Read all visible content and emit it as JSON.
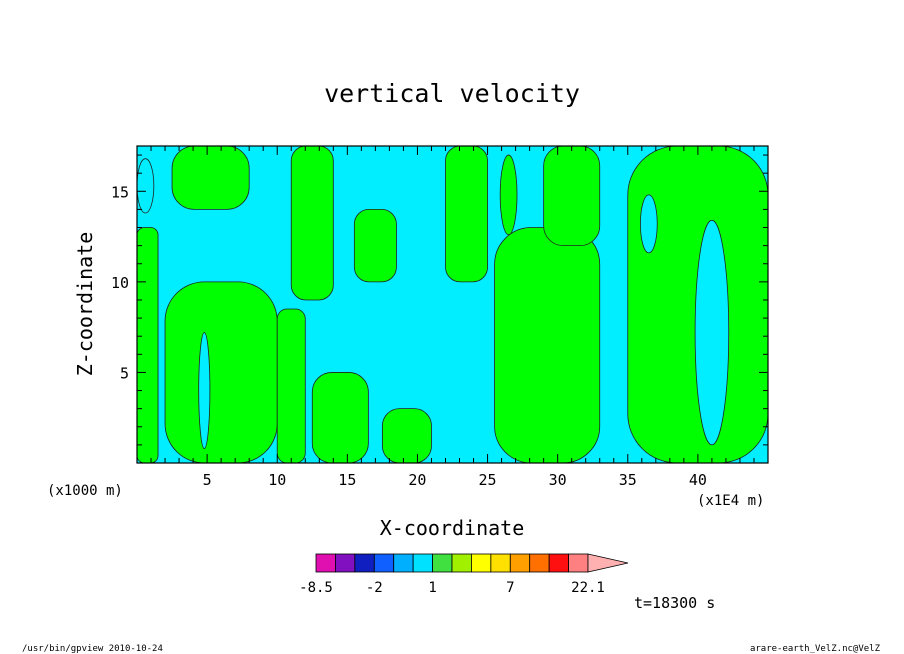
{
  "chart_data": {
    "type": "heatmap",
    "title": "vertical velocity",
    "xlabel": "X-coordinate",
    "ylabel": "Z-coordinate",
    "x_unit_left": "(x1000 m)",
    "x_unit_right": "(x1E4 m)",
    "xlim": [
      0,
      45
    ],
    "ylim": [
      0,
      17.5
    ],
    "x_ticks": [
      5,
      10,
      15,
      20,
      25,
      30,
      35,
      40
    ],
    "x_tick_labels": [
      "5",
      "10",
      "15",
      "20",
      "25",
      "30",
      "35",
      "40"
    ],
    "y_ticks": [
      5,
      10,
      15
    ],
    "y_tick_labels": [
      "5",
      "10",
      "15"
    ],
    "grid": false,
    "colorbar": {
      "colors": [
        "#e010b0",
        "#8010c0",
        "#1020c0",
        "#1060ff",
        "#00b0ff",
        "#00e0ff",
        "#40e040",
        "#a0f000",
        "#ffff00",
        "#ffe000",
        "#ffa000",
        "#ff7000",
        "#ff1010",
        "#ff8080"
      ],
      "extend_color": "#ffb0b0",
      "tick_labels": [
        {
          "label": "-8.5",
          "at_boundary": 0
        },
        {
          "label": "-2",
          "at_boundary": 3
        },
        {
          "label": "1",
          "at_boundary": 6
        },
        {
          "label": "7",
          "at_boundary": 10
        },
        {
          "label": "22.1",
          "at_boundary": 14
        }
      ]
    },
    "field_colors": {
      "positive": "#00ff00",
      "negative": "#00eeff"
    },
    "regions": [
      {
        "level": "positive",
        "x0": 0,
        "x1": 1.5,
        "z0": 0,
        "z1": 13
      },
      {
        "level": "positive",
        "x0": 2,
        "x1": 10,
        "z0": 0,
        "z1": 10
      },
      {
        "level": "positive",
        "x0": 10,
        "x1": 12,
        "z0": 0,
        "z1": 8.5
      },
      {
        "level": "positive",
        "x0": 2.5,
        "x1": 8,
        "z0": 14,
        "z1": 17.5
      },
      {
        "level": "positive",
        "x0": 11,
        "x1": 14,
        "z0": 9,
        "z1": 17.5
      },
      {
        "level": "positive",
        "x0": 12.5,
        "x1": 16.5,
        "z0": 0,
        "z1": 5
      },
      {
        "level": "positive",
        "x0": 15.5,
        "x1": 18.5,
        "z0": 10,
        "z1": 14
      },
      {
        "level": "positive",
        "x0": 17.5,
        "x1": 21,
        "z0": 0,
        "z1": 3
      },
      {
        "level": "positive",
        "x0": 22,
        "x1": 25,
        "z0": 10,
        "z1": 17.5
      },
      {
        "level": "positive",
        "x0": 25.5,
        "x1": 33,
        "z0": 0,
        "z1": 13
      },
      {
        "level": "positive",
        "x0": 29,
        "x1": 33,
        "z0": 12,
        "z1": 17.5
      },
      {
        "level": "positive",
        "x0": 35,
        "x1": 45,
        "z0": 0,
        "z1": 17.5
      }
    ],
    "islands": [
      {
        "level": "negative",
        "cx": 4.8,
        "cz": 4.0,
        "rx": 0.4,
        "rz": 3.2
      },
      {
        "level": "negative",
        "cx": 36.5,
        "cz": 13.2,
        "rx": 0.6,
        "rz": 1.6
      },
      {
        "level": "negative",
        "cx": 41.0,
        "cz": 7.2,
        "rx": 1.2,
        "rz": 6.2
      },
      {
        "level": "negative",
        "cx": 0.6,
        "cz": 15.3,
        "rx": 0.6,
        "rz": 1.5
      },
      {
        "level": "positive",
        "cx": 26.5,
        "cz": 14.8,
        "rx": 0.6,
        "rz": 2.2
      }
    ]
  },
  "annotations": {
    "time": "t=18300 s",
    "program": "/usr/bin/gpview   2010-10-24",
    "source": "arare-earth_VelZ.nc@VelZ"
  }
}
